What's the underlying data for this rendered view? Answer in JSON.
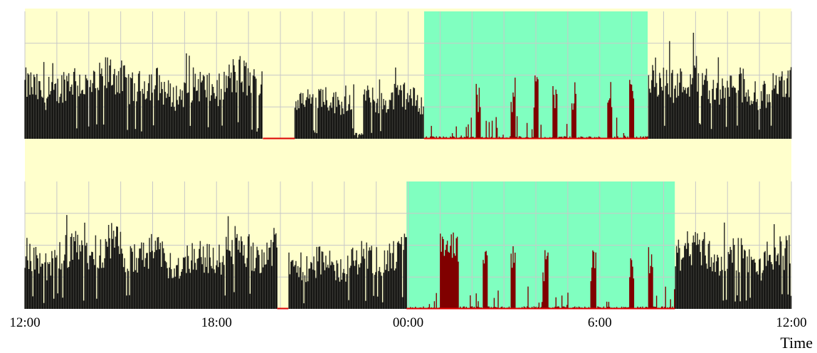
{
  "colors": {
    "background": "#ffffcc",
    "grid": "#c8c8c8",
    "activity": "#000000",
    "activity_edge": "#fffde8",
    "dark_period": "#80ffc0",
    "dark_activity": "#800000",
    "zero_line": "#dd0000"
  },
  "chart_data": {
    "type": "bar",
    "title": "",
    "xlabel": "Time",
    "ylabel": "",
    "grid": true,
    "legend": "none",
    "x_range_hours": [
      12,
      36
    ],
    "x_ticks": [
      "12:00",
      "18:00",
      "00:00",
      "6:00",
      "12:00"
    ],
    "x_tick_hours": [
      12,
      18,
      24,
      30,
      36
    ],
    "panels": [
      {
        "name": "",
        "dark_period_hours": [
          24.5,
          31.5
        ],
        "segments": [
          {
            "start": 12.0,
            "end": 19.45,
            "level": 0.62,
            "kind": "active"
          },
          {
            "start": 19.45,
            "end": 20.45,
            "level": 0.0,
            "kind": "zero"
          },
          {
            "start": 20.45,
            "end": 22.3,
            "level": 0.5,
            "kind": "active"
          },
          {
            "start": 22.3,
            "end": 22.6,
            "level": 0.05,
            "kind": "active"
          },
          {
            "start": 22.6,
            "end": 24.5,
            "level": 0.42,
            "kind": "active"
          },
          {
            "start": 24.5,
            "end": 31.5,
            "level": 0.03,
            "kind": "dark"
          },
          {
            "start": 31.5,
            "end": 36.0,
            "level": 0.62,
            "kind": "active"
          }
        ],
        "peaks_hours": [
          26.2,
          27.3,
          28.0,
          28.6,
          29.2,
          30.3,
          31.0
        ]
      },
      {
        "name": "",
        "dark_period_hours": [
          23.95,
          32.35
        ],
        "segments": [
          {
            "start": 12.0,
            "end": 19.9,
            "level": 0.62,
            "kind": "active"
          },
          {
            "start": 19.9,
            "end": 20.25,
            "level": 0.0,
            "kind": "zero"
          },
          {
            "start": 20.25,
            "end": 23.95,
            "level": 0.55,
            "kind": "active"
          },
          {
            "start": 23.95,
            "end": 32.35,
            "level": 0.03,
            "kind": "dark"
          },
          {
            "start": 32.35,
            "end": 36.0,
            "level": 0.62,
            "kind": "active"
          }
        ],
        "burst_hours": [
          25.0,
          25.6
        ],
        "peaks_hours": [
          26.4,
          27.3,
          28.3,
          29.8,
          31.0,
          31.6
        ]
      }
    ]
  }
}
